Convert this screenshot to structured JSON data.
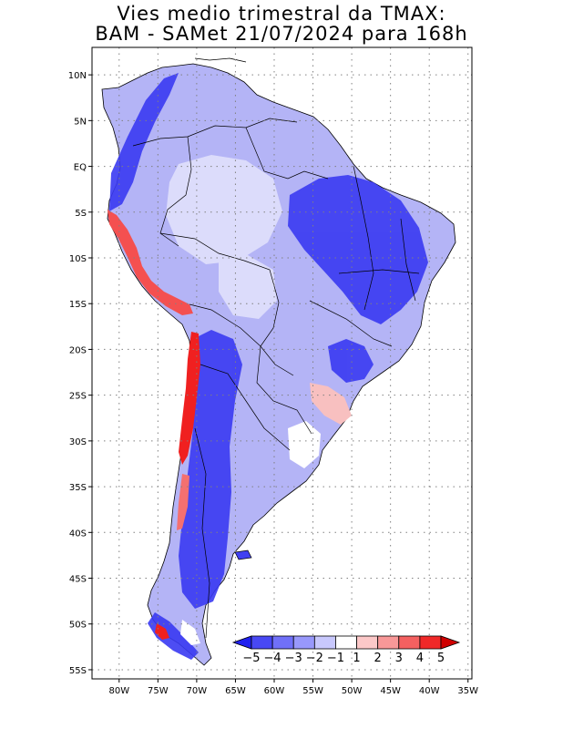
{
  "title": {
    "line1": "Vies medio trimestral da TMAX:",
    "line2": "BAM - SAMet 21/07/2024  para 168h"
  },
  "map": {
    "region": "South America",
    "lon_range": [
      -83.5,
      -34.5
    ],
    "lat_range": [
      -56,
      13
    ],
    "x_ticks": [
      {
        "lon": -80,
        "label": "80W"
      },
      {
        "lon": -75,
        "label": "75W"
      },
      {
        "lon": -70,
        "label": "70W"
      },
      {
        "lon": -65,
        "label": "65W"
      },
      {
        "lon": -60,
        "label": "60W"
      },
      {
        "lon": -55,
        "label": "55W"
      },
      {
        "lon": -50,
        "label": "50W"
      },
      {
        "lon": -45,
        "label": "45W"
      },
      {
        "lon": -40,
        "label": "40W"
      },
      {
        "lon": -35,
        "label": "35W"
      }
    ],
    "y_ticks": [
      {
        "lat": 10,
        "label": "10N"
      },
      {
        "lat": 5,
        "label": "5N"
      },
      {
        "lat": 0,
        "label": "EQ"
      },
      {
        "lat": -5,
        "label": "5S"
      },
      {
        "lat": -10,
        "label": "10S"
      },
      {
        "lat": -15,
        "label": "15S"
      },
      {
        "lat": -20,
        "label": "20S"
      },
      {
        "lat": -25,
        "label": "25S"
      },
      {
        "lat": -30,
        "label": "30S"
      },
      {
        "lat": -35,
        "label": "35S"
      },
      {
        "lat": -40,
        "label": "40S"
      },
      {
        "lat": -45,
        "label": "45S"
      },
      {
        "lat": -50,
        "label": "50S"
      },
      {
        "lat": -55,
        "label": "55S"
      }
    ],
    "gridlines": "dotted"
  },
  "colorbar": {
    "labels": [
      "-5",
      "-4",
      "-3",
      "-2",
      "-1",
      "1",
      "2",
      "3",
      "4",
      "5"
    ],
    "colors": [
      "#2020f0",
      "#4848f4",
      "#7070f8",
      "#9898fb",
      "#c8c8fd",
      "#ffffff",
      "#fcc8c8",
      "#f89898",
      "#f46060",
      "#f02828",
      "#d00000"
    ]
  },
  "legend_colors": {
    "strong_negative": "#1a1af5",
    "negative": "#5a5af5",
    "weak_negative": "#a8a8f8",
    "near_zero": "#ffffff",
    "positive": "#f58080",
    "strong_positive": "#f01010"
  }
}
